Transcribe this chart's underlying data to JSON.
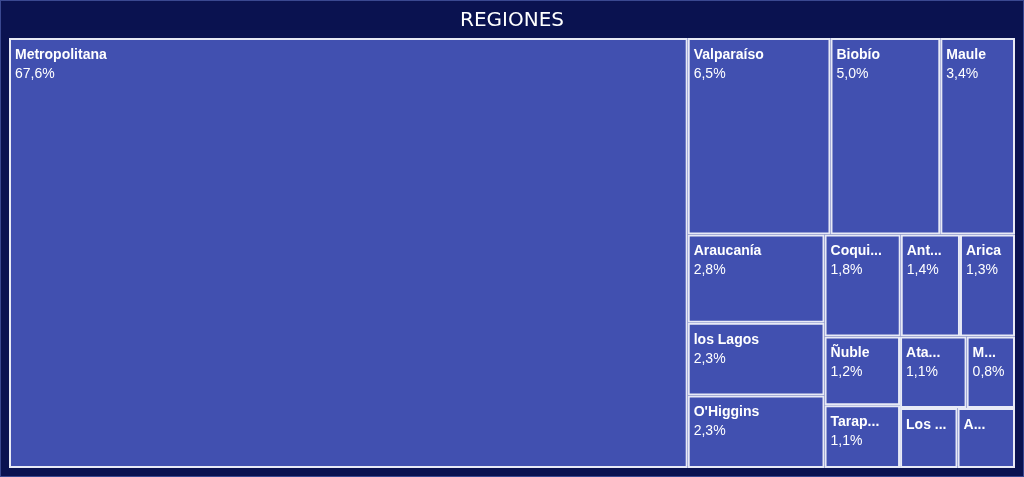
{
  "chart_data": {
    "type": "other",
    "title": "REGIONES",
    "categories": [
      "Metropolitana",
      "Valparaíso",
      "Biobío",
      "Maule",
      "Araucanía",
      "los Lagos",
      "O'Higgins",
      "Coqui...",
      "Ant...",
      "Arica",
      "Ñuble",
      "Tarap...",
      "Ata...",
      "M...",
      "Los ...",
      "A..."
    ],
    "values": [
      67.6,
      6.5,
      5.0,
      3.4,
      2.8,
      2.3,
      2.3,
      1.8,
      1.4,
      1.3,
      1.2,
      1.1,
      1.1,
      0.8,
      null,
      null
    ],
    "value_labels": [
      "67,6%",
      "6,5%",
      "5,0%",
      "3,4%",
      "2,8%",
      "2,3%",
      "2,3%",
      "1,8%",
      "1,4%",
      "1,3%",
      "1,2%",
      "1,1%",
      "1,1%",
      "0,8%",
      null,
      null
    ],
    "color": "#4150b0"
  }
}
